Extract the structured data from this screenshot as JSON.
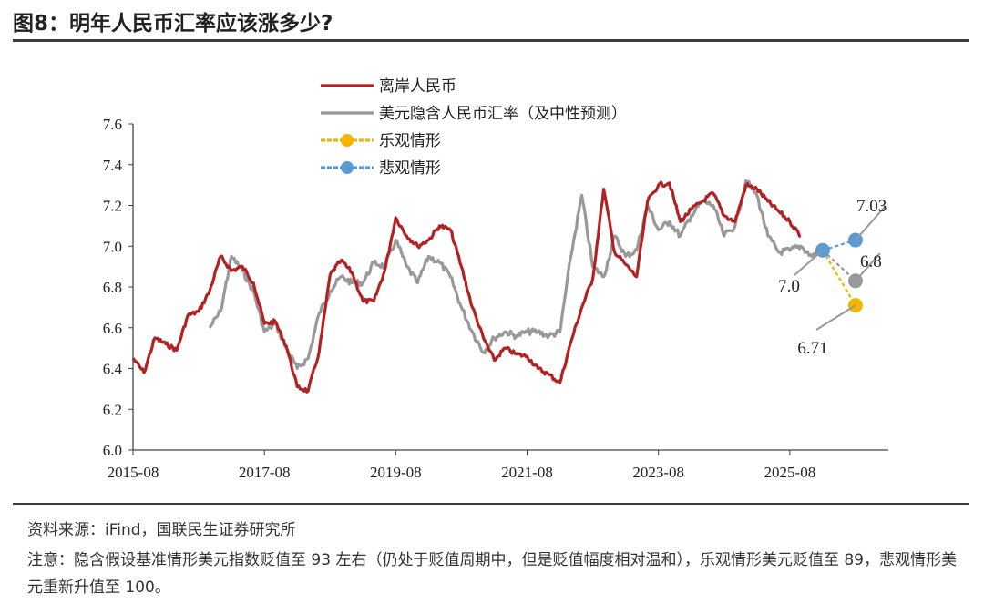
{
  "figure": {
    "title": "图8：明年人民币汇率应该涨多少?",
    "source": "资料来源：iFind，国联民生证券研究所",
    "note": "注意：隐含假设基准情形美元指数贬值至 93 左右（仍处于贬值周期中，但是贬值幅度相对温和），乐观情形美元贬值至 89，悲观情形美元重新升值至 100。"
  },
  "chart_data": {
    "type": "line",
    "title": "",
    "xlabel": "",
    "ylabel": "",
    "ylim": [
      6.0,
      7.6
    ],
    "yticks": [
      "6.0",
      "6.2",
      "6.4",
      "6.6",
      "6.8",
      "7.0",
      "7.2",
      "7.4",
      "7.6"
    ],
    "xlim": [
      "2015-08",
      "2027-02"
    ],
    "xticks": [
      "2015-08",
      "2017-08",
      "2019-08",
      "2021-08",
      "2023-08",
      "2025-08"
    ],
    "grid": false,
    "legend_position": "top-center",
    "series": [
      {
        "name": "离岸人民币",
        "color": "#b22222",
        "x": [
          "2015-08",
          "2015-10",
          "2015-12",
          "2016-02",
          "2016-04",
          "2016-06",
          "2016-08",
          "2016-10",
          "2016-12",
          "2017-02",
          "2017-04",
          "2017-06",
          "2017-08",
          "2017-10",
          "2017-12",
          "2018-02",
          "2018-04",
          "2018-06",
          "2018-08",
          "2018-10",
          "2018-12",
          "2019-02",
          "2019-04",
          "2019-06",
          "2019-08",
          "2019-10",
          "2019-12",
          "2020-02",
          "2020-04",
          "2020-06",
          "2020-08",
          "2020-10",
          "2020-12",
          "2021-02",
          "2021-04",
          "2021-06",
          "2021-08",
          "2021-10",
          "2021-12",
          "2022-02",
          "2022-04",
          "2022-06",
          "2022-08",
          "2022-10",
          "2022-12",
          "2023-02",
          "2023-04",
          "2023-06",
          "2023-08",
          "2023-10",
          "2023-12",
          "2024-02",
          "2024-04",
          "2024-06",
          "2024-08",
          "2024-10",
          "2024-12",
          "2025-02",
          "2025-04",
          "2025-06",
          "2025-08",
          "2025-10"
        ],
        "values": [
          6.45,
          6.38,
          6.55,
          6.52,
          6.49,
          6.66,
          6.68,
          6.78,
          6.95,
          6.88,
          6.9,
          6.82,
          6.62,
          6.63,
          6.51,
          6.31,
          6.29,
          6.48,
          6.86,
          6.93,
          6.87,
          6.73,
          6.73,
          6.88,
          7.14,
          7.05,
          7.0,
          7.03,
          7.1,
          7.08,
          6.9,
          6.7,
          6.55,
          6.44,
          6.5,
          6.47,
          6.46,
          6.4,
          6.37,
          6.33,
          6.53,
          6.7,
          6.84,
          7.28,
          6.97,
          6.91,
          6.85,
          7.22,
          7.3,
          7.31,
          7.12,
          7.18,
          7.22,
          7.26,
          7.15,
          7.12,
          7.3,
          7.28,
          7.22,
          7.17,
          7.12,
          7.05
        ]
      },
      {
        "name": "美元隐含人民币汇率（及中性预测）",
        "color": "#999999",
        "x": [
          "2016-10",
          "2016-12",
          "2017-02",
          "2017-04",
          "2017-06",
          "2017-08",
          "2017-10",
          "2017-12",
          "2018-02",
          "2018-04",
          "2018-06",
          "2018-08",
          "2018-10",
          "2018-12",
          "2019-02",
          "2019-04",
          "2019-06",
          "2019-08",
          "2019-10",
          "2019-12",
          "2020-02",
          "2020-04",
          "2020-06",
          "2020-08",
          "2020-10",
          "2020-12",
          "2021-02",
          "2021-04",
          "2021-06",
          "2021-08",
          "2021-10",
          "2021-12",
          "2022-02",
          "2022-04",
          "2022-06",
          "2022-08",
          "2022-10",
          "2022-12",
          "2023-02",
          "2023-04",
          "2023-06",
          "2023-08",
          "2023-10",
          "2023-12",
          "2024-02",
          "2024-04",
          "2024-06",
          "2024-08",
          "2024-10",
          "2024-12",
          "2025-02",
          "2025-04",
          "2025-06",
          "2025-08",
          "2025-10",
          "2025-12",
          "2026-02"
        ],
        "values": [
          6.6,
          6.68,
          6.95,
          6.88,
          6.78,
          6.58,
          6.62,
          6.5,
          6.4,
          6.45,
          6.67,
          6.78,
          6.85,
          6.82,
          6.82,
          6.92,
          6.9,
          7.03,
          6.9,
          6.82,
          6.95,
          6.92,
          6.85,
          6.7,
          6.58,
          6.48,
          6.55,
          6.58,
          6.56,
          6.58,
          6.58,
          6.56,
          6.58,
          6.95,
          7.25,
          6.9,
          6.85,
          7.05,
          6.95,
          6.98,
          7.2,
          7.08,
          7.12,
          7.05,
          7.15,
          7.22,
          7.2,
          7.05,
          7.1,
          7.32,
          7.25,
          7.05,
          6.97,
          6.98,
          7.0,
          6.95,
          6.98
        ]
      },
      {
        "name": "乐观情形",
        "color": "#f4b400",
        "x": [
          "2026-02",
          "2026-08"
        ],
        "values": [
          6.98,
          6.71
        ]
      },
      {
        "name": "悲观情形",
        "color": "#5b9bd5",
        "x": [
          "2026-02",
          "2026-08"
        ],
        "values": [
          6.98,
          7.03
        ]
      }
    ],
    "neutral_point": {
      "x": "2026-08",
      "value": 6.83,
      "color": "#999999"
    },
    "annotations": [
      {
        "text": "7.03",
        "x": "2026-08",
        "value": 7.03
      },
      {
        "text": "6.8",
        "x": "2026-08",
        "value": 6.83
      },
      {
        "text": "7.0",
        "x": "2026-02",
        "value": 6.98
      },
      {
        "text": "6.71",
        "x": "2026-08",
        "value": 6.71
      }
    ]
  }
}
